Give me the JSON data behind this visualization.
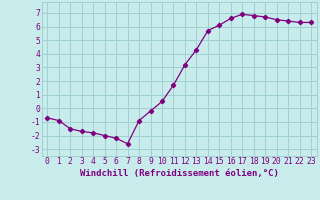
{
  "x": [
    0,
    1,
    2,
    3,
    4,
    5,
    6,
    7,
    8,
    9,
    10,
    11,
    12,
    13,
    14,
    15,
    16,
    17,
    18,
    19,
    20,
    21,
    22,
    23
  ],
  "y": [
    -0.7,
    -0.9,
    -1.5,
    -1.7,
    -1.8,
    -2.0,
    -2.2,
    -2.6,
    -0.9,
    -0.2,
    0.5,
    1.7,
    3.2,
    4.3,
    5.7,
    6.1,
    6.6,
    6.9,
    6.8,
    6.7,
    6.5,
    6.4,
    6.3,
    6.3
  ],
  "line_color": "#800080",
  "marker": "D",
  "marker_size": 2.2,
  "bg_color": "#c8ecec",
  "grid_color": "#a0d0d0",
  "xlabel": "Windchill (Refroidissement éolien,°C)",
  "xlabel_color": "#800080",
  "xlabel_fontsize": 6.5,
  "xtick_labels": [
    "0",
    "1",
    "2",
    "3",
    "4",
    "5",
    "6",
    "7",
    "8",
    "9",
    "10",
    "11",
    "12",
    "13",
    "14",
    "15",
    "16",
    "17",
    "18",
    "19",
    "20",
    "21",
    "22",
    "23"
  ],
  "ytick_labels": [
    "-3",
    "-2",
    "-1",
    "0",
    "1",
    "2",
    "3",
    "4",
    "5",
    "6",
    "7"
  ],
  "ytick_vals": [
    -3,
    -2,
    -1,
    0,
    1,
    2,
    3,
    4,
    5,
    6,
    7
  ],
  "ylim": [
    -3.5,
    7.8
  ],
  "xlim": [
    -0.5,
    23.5
  ],
  "tick_color": "#800080",
  "tick_fontsize": 5.8
}
